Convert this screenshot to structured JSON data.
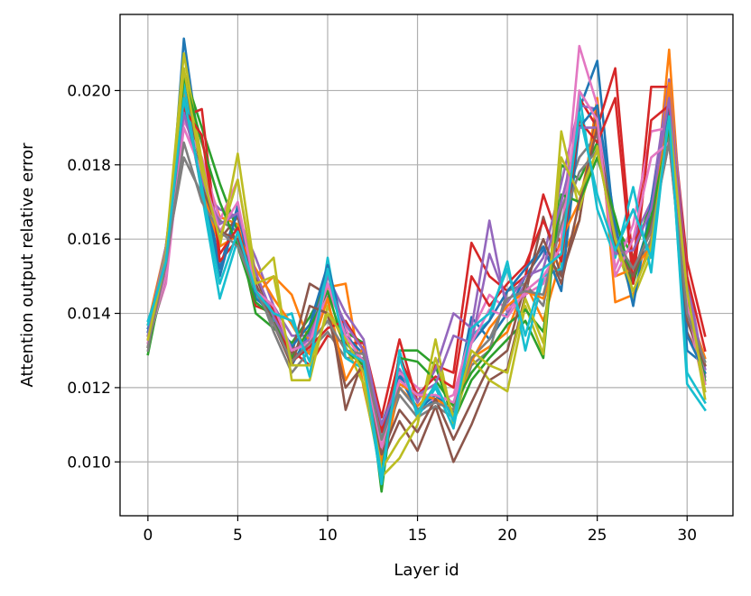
{
  "chart_data": {
    "type": "line",
    "xlabel": "Layer id",
    "ylabel": "Attention output relative error",
    "xlim": [
      -1.55,
      32.55
    ],
    "ylim": [
      0.00855,
      0.02205
    ],
    "xticks": [
      0,
      5,
      10,
      15,
      20,
      25,
      30
    ],
    "xtick_labels": [
      "0",
      "5",
      "10",
      "15",
      "20",
      "25",
      "30"
    ],
    "yticks": [
      0.01,
      0.012,
      0.014,
      0.016,
      0.018,
      0.02
    ],
    "ytick_labels": [
      "0.010",
      "0.012",
      "0.014",
      "0.016",
      "0.018",
      "0.020"
    ],
    "grid": true,
    "x": [
      0,
      1,
      2,
      3,
      4,
      5,
      6,
      7,
      8,
      9,
      10,
      11,
      12,
      13,
      14,
      15,
      16,
      17,
      18,
      19,
      20,
      21,
      22,
      23,
      24,
      25,
      26,
      27,
      28,
      29,
      30,
      31
    ],
    "series": [
      {
        "color": "#1f77b4",
        "values": [
          0.0136,
          0.015,
          0.0214,
          0.018,
          0.0152,
          0.0169,
          0.0145,
          0.0138,
          0.0126,
          0.0135,
          0.0151,
          0.0132,
          0.0127,
          0.011,
          0.0124,
          0.0113,
          0.0117,
          0.0114,
          0.0139,
          0.0133,
          0.014,
          0.015,
          0.0157,
          0.015,
          0.0195,
          0.0208,
          0.016,
          0.015,
          0.0166,
          0.0194,
          0.013,
          0.0126
        ]
      },
      {
        "color": "#ff7f0e",
        "values": [
          0.0137,
          0.0158,
          0.02,
          0.018,
          0.0166,
          0.0164,
          0.0145,
          0.015,
          0.0145,
          0.0132,
          0.0147,
          0.0148,
          0.012,
          0.0098,
          0.012,
          0.0115,
          0.012,
          0.0112,
          0.0128,
          0.0131,
          0.0135,
          0.0148,
          0.0138,
          0.0155,
          0.0165,
          0.0198,
          0.0143,
          0.0145,
          0.016,
          0.0211,
          0.0142,
          0.0128
        ]
      },
      {
        "color": "#2ca02c",
        "values": [
          0.0129,
          0.0153,
          0.0205,
          0.019,
          0.0175,
          0.0162,
          0.014,
          0.0136,
          0.0132,
          0.0139,
          0.0148,
          0.0135,
          0.0132,
          0.0092,
          0.013,
          0.013,
          0.0126,
          0.0111,
          0.0122,
          0.0128,
          0.0133,
          0.0138,
          0.0128,
          0.018,
          0.0176,
          0.0186,
          0.0164,
          0.0155,
          0.017,
          0.0198,
          0.0148,
          0.0121
        ]
      },
      {
        "color": "#d62728",
        "values": [
          0.0131,
          0.0158,
          0.0193,
          0.0195,
          0.0154,
          0.016,
          0.0142,
          0.014,
          0.013,
          0.0126,
          0.0134,
          0.0132,
          0.0132,
          0.0112,
          0.0133,
          0.0116,
          0.0126,
          0.0124,
          0.0159,
          0.015,
          0.0146,
          0.015,
          0.0172,
          0.0158,
          0.0198,
          0.019,
          0.0206,
          0.0152,
          0.0201,
          0.0201,
          0.0154,
          0.0134
        ]
      },
      {
        "color": "#9467bd",
        "values": [
          0.0135,
          0.0158,
          0.0198,
          0.0173,
          0.0168,
          0.0166,
          0.0155,
          0.0142,
          0.0134,
          0.0134,
          0.015,
          0.014,
          0.0133,
          0.0108,
          0.0125,
          0.0116,
          0.0125,
          0.014,
          0.0136,
          0.0165,
          0.014,
          0.0148,
          0.0155,
          0.0175,
          0.0196,
          0.0195,
          0.0158,
          0.016,
          0.017,
          0.0203,
          0.015,
          0.0123
        ]
      },
      {
        "color": "#8c564b",
        "values": [
          0.0132,
          0.0156,
          0.0202,
          0.0178,
          0.016,
          0.0166,
          0.015,
          0.0138,
          0.0129,
          0.0148,
          0.0145,
          0.0114,
          0.0128,
          0.01,
          0.0111,
          0.0103,
          0.0115,
          0.01,
          0.011,
          0.0122,
          0.0125,
          0.0145,
          0.0166,
          0.015,
          0.0165,
          0.0195,
          0.016,
          0.0148,
          0.0165,
          0.019,
          0.0135,
          0.0124
        ]
      },
      {
        "color": "#e377c2",
        "values": [
          0.0133,
          0.0148,
          0.0192,
          0.0182,
          0.0165,
          0.0176,
          0.0147,
          0.014,
          0.0128,
          0.013,
          0.0146,
          0.0136,
          0.0125,
          0.0102,
          0.0124,
          0.012,
          0.0116,
          0.0118,
          0.0135,
          0.0145,
          0.0141,
          0.0145,
          0.0148,
          0.016,
          0.0212,
          0.0196,
          0.0152,
          0.0164,
          0.0189,
          0.019,
          0.014,
          0.0119
        ]
      },
      {
        "color": "#7f7f7f",
        "values": [
          0.013,
          0.0155,
          0.0182,
          0.0172,
          0.0165,
          0.0162,
          0.0148,
          0.0135,
          0.0124,
          0.013,
          0.0135,
          0.0128,
          0.0128,
          0.0104,
          0.0118,
          0.0112,
          0.0115,
          0.0112,
          0.0126,
          0.013,
          0.0146,
          0.0148,
          0.0142,
          0.0168,
          0.0182,
          0.0188,
          0.0162,
          0.015,
          0.016,
          0.0188,
          0.0138,
          0.0125
        ]
      },
      {
        "color": "#bcbd22",
        "values": [
          0.0134,
          0.0157,
          0.021,
          0.0181,
          0.0158,
          0.0183,
          0.015,
          0.0155,
          0.0122,
          0.0122,
          0.0142,
          0.0131,
          0.0121,
          0.0096,
          0.0101,
          0.011,
          0.0133,
          0.011,
          0.0128,
          0.0122,
          0.0119,
          0.0142,
          0.0129,
          0.0189,
          0.0168,
          0.0185,
          0.0159,
          0.0144,
          0.0156,
          0.0192,
          0.0145,
          0.0117
        ]
      },
      {
        "color": "#17becf",
        "values": [
          0.0138,
          0.0152,
          0.0202,
          0.0172,
          0.0144,
          0.016,
          0.0145,
          0.0138,
          0.014,
          0.0123,
          0.0155,
          0.0128,
          0.0125,
          0.0094,
          0.013,
          0.0112,
          0.012,
          0.0109,
          0.0134,
          0.0138,
          0.0154,
          0.013,
          0.015,
          0.0152,
          0.0199,
          0.0168,
          0.0155,
          0.0174,
          0.0151,
          0.0195,
          0.0121,
          0.0114
        ]
      },
      {
        "color": "#1f77b4",
        "values": [
          0.0135,
          0.0152,
          0.0196,
          0.0176,
          0.015,
          0.0168,
          0.0144,
          0.014,
          0.0131,
          0.0137,
          0.0153,
          0.0134,
          0.0129,
          0.0106,
          0.0123,
          0.0114,
          0.0118,
          0.0113,
          0.0132,
          0.0138,
          0.0146,
          0.0152,
          0.0158,
          0.0146,
          0.019,
          0.0196,
          0.0164,
          0.0142,
          0.017,
          0.0196,
          0.0134,
          0.0124
        ]
      },
      {
        "color": "#ff7f0e",
        "values": [
          0.0134,
          0.0154,
          0.0198,
          0.0174,
          0.0158,
          0.0161,
          0.0152,
          0.0144,
          0.0137,
          0.0129,
          0.0144,
          0.0122,
          0.0131,
          0.01,
          0.0121,
          0.0118,
          0.0117,
          0.0114,
          0.0127,
          0.0136,
          0.0142,
          0.0146,
          0.0144,
          0.016,
          0.017,
          0.0192,
          0.015,
          0.0152,
          0.0158,
          0.0202,
          0.0144,
          0.0126
        ]
      },
      {
        "color": "#2ca02c",
        "values": [
          0.0131,
          0.015,
          0.0204,
          0.0186,
          0.017,
          0.0158,
          0.0143,
          0.0139,
          0.0128,
          0.0136,
          0.0146,
          0.013,
          0.0126,
          0.0097,
          0.0128,
          0.0127,
          0.0122,
          0.0115,
          0.0124,
          0.013,
          0.0137,
          0.0141,
          0.0135,
          0.0172,
          0.017,
          0.0182,
          0.0166,
          0.0148,
          0.0166,
          0.019,
          0.0144,
          0.0122
        ]
      },
      {
        "color": "#d62728",
        "values": [
          0.0133,
          0.0154,
          0.0195,
          0.0188,
          0.0156,
          0.0163,
          0.0146,
          0.0141,
          0.0127,
          0.0131,
          0.0136,
          0.0138,
          0.013,
          0.0108,
          0.0128,
          0.0118,
          0.0123,
          0.012,
          0.015,
          0.0142,
          0.0148,
          0.0153,
          0.0165,
          0.0154,
          0.0192,
          0.0186,
          0.0198,
          0.0148,
          0.0192,
          0.0196,
          0.015,
          0.013
        ]
      },
      {
        "color": "#9467bd",
        "values": [
          0.0134,
          0.0156,
          0.0194,
          0.0176,
          0.0164,
          0.0167,
          0.0151,
          0.0139,
          0.013,
          0.0133,
          0.0148,
          0.0137,
          0.013,
          0.011,
          0.0122,
          0.0118,
          0.0121,
          0.0134,
          0.0132,
          0.0156,
          0.0143,
          0.015,
          0.0152,
          0.017,
          0.019,
          0.019,
          0.0156,
          0.0157,
          0.0168,
          0.0198,
          0.0146,
          0.0125
        ]
      },
      {
        "color": "#8c564b",
        "values": [
          0.0131,
          0.0153,
          0.0198,
          0.0174,
          0.0162,
          0.016,
          0.0148,
          0.0137,
          0.0126,
          0.0142,
          0.014,
          0.012,
          0.0126,
          0.0102,
          0.0114,
          0.0108,
          0.0117,
          0.0106,
          0.0116,
          0.0126,
          0.013,
          0.0148,
          0.016,
          0.0148,
          0.017,
          0.019,
          0.0158,
          0.015,
          0.0163,
          0.0186,
          0.0138,
          0.0126
        ]
      },
      {
        "color": "#e377c2",
        "values": [
          0.0132,
          0.015,
          0.019,
          0.0178,
          0.0162,
          0.017,
          0.0146,
          0.0142,
          0.013,
          0.0132,
          0.0148,
          0.0134,
          0.0127,
          0.0104,
          0.0122,
          0.0118,
          0.0118,
          0.0116,
          0.0132,
          0.0141,
          0.0139,
          0.0146,
          0.015,
          0.0158,
          0.02,
          0.0192,
          0.015,
          0.016,
          0.0182,
          0.0186,
          0.0142,
          0.0121
        ]
      },
      {
        "color": "#7f7f7f",
        "values": [
          0.0131,
          0.0153,
          0.0186,
          0.017,
          0.0162,
          0.0158,
          0.0146,
          0.0137,
          0.0127,
          0.0132,
          0.0138,
          0.013,
          0.0129,
          0.0106,
          0.012,
          0.0114,
          0.0116,
          0.0114,
          0.0128,
          0.0133,
          0.0144,
          0.0146,
          0.0145,
          0.0164,
          0.0178,
          0.0184,
          0.016,
          0.0152,
          0.0162,
          0.0186,
          0.014,
          0.0127
        ]
      },
      {
        "color": "#bcbd22",
        "values": [
          0.0133,
          0.0155,
          0.0206,
          0.0178,
          0.016,
          0.0176,
          0.0148,
          0.015,
          0.0126,
          0.0126,
          0.014,
          0.0133,
          0.0124,
          0.0098,
          0.0106,
          0.0112,
          0.0128,
          0.0112,
          0.013,
          0.0126,
          0.0124,
          0.0144,
          0.0132,
          0.0182,
          0.0172,
          0.0184,
          0.016,
          0.0146,
          0.0158,
          0.0193,
          0.0146,
          0.0119
        ]
      },
      {
        "color": "#17becf",
        "values": [
          0.0137,
          0.0154,
          0.0198,
          0.0174,
          0.0148,
          0.0162,
          0.0146,
          0.014,
          0.0138,
          0.0127,
          0.0152,
          0.013,
          0.0127,
          0.0096,
          0.0128,
          0.0113,
          0.0121,
          0.0111,
          0.0136,
          0.014,
          0.0152,
          0.0134,
          0.0152,
          0.0156,
          0.0194,
          0.0172,
          0.0157,
          0.0168,
          0.0155,
          0.0193,
          0.0124,
          0.0116
        ]
      }
    ]
  }
}
